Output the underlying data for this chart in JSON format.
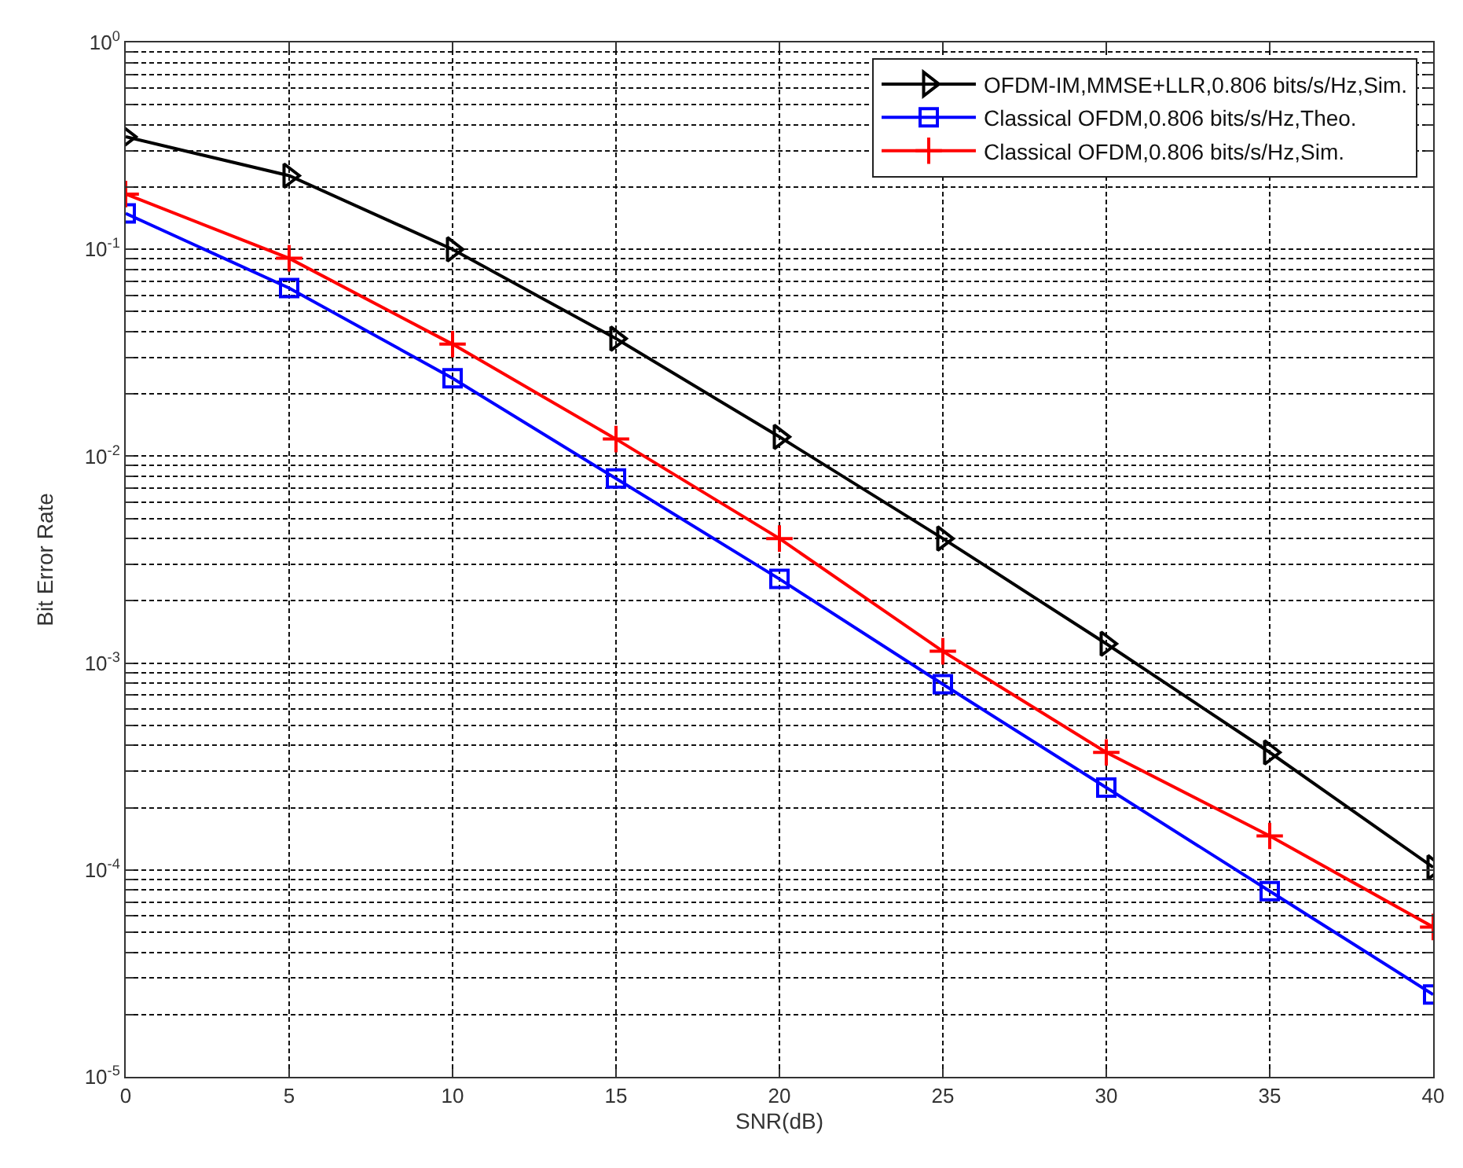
{
  "chart_data": {
    "type": "line",
    "xlabel": "SNR(dB)",
    "ylabel": "Bit Error Rate",
    "x": [
      0,
      5,
      10,
      15,
      20,
      25,
      30,
      35,
      40
    ],
    "xlim": [
      0,
      40
    ],
    "xticks": [
      0,
      5,
      10,
      15,
      20,
      25,
      30,
      35,
      40
    ],
    "log": "y",
    "ylim": [
      1e-05,
      1
    ],
    "yticks": [
      {
        "value": 1e-05,
        "label": "10$^{-5}$"
      },
      {
        "value": 2e-05,
        "label": null
      },
      {
        "value": 3e-05,
        "label": null
      },
      {
        "value": 4e-05,
        "label": null
      },
      {
        "value": 5e-05,
        "label": null
      },
      {
        "value": 6e-05,
        "label": null
      },
      {
        "value": 7e-05,
        "label": null
      },
      {
        "value": 8e-05,
        "label": null
      },
      {
        "value": 9e-05,
        "label": null
      },
      {
        "value": 0.0001,
        "label": "10$^{-4}$"
      },
      {
        "value": 0.0002,
        "label": null
      },
      {
        "value": 0.0003,
        "label": null
      },
      {
        "value": 0.0004,
        "label": null
      },
      {
        "value": 0.0005,
        "label": null
      },
      {
        "value": 0.0006,
        "label": null
      },
      {
        "value": 0.0007,
        "label": null
      },
      {
        "value": 0.0008,
        "label": null
      },
      {
        "value": 0.0009,
        "label": null
      },
      {
        "value": 0.001,
        "label": "10$^{-3}$"
      },
      {
        "value": 0.002,
        "label": null
      },
      {
        "value": 0.003,
        "label": null
      },
      {
        "value": 0.004,
        "label": null
      },
      {
        "value": 0.005,
        "label": null
      },
      {
        "value": 0.006,
        "label": null
      },
      {
        "value": 0.007,
        "label": null
      },
      {
        "value": 0.008,
        "label": null
      },
      {
        "value": 0.009,
        "label": null
      },
      {
        "value": 0.01,
        "label": "10$^{-2}$"
      },
      {
        "value": 0.02,
        "label": null
      },
      {
        "value": 0.03,
        "label": null
      },
      {
        "value": 0.04,
        "label": null
      },
      {
        "value": 0.05,
        "label": null
      },
      {
        "value": 0.06,
        "label": null
      },
      {
        "value": 0.07,
        "label": null
      },
      {
        "value": 0.08,
        "label": null
      },
      {
        "value": 0.09,
        "label": null
      },
      {
        "value": 0.1,
        "label": "10$^{-1}$"
      },
      {
        "value": 0.2,
        "label": null
      },
      {
        "value": 0.3,
        "label": null
      },
      {
        "value": 0.4,
        "label": null
      },
      {
        "value": 0.5,
        "label": null
      },
      {
        "value": 0.6,
        "label": null
      },
      {
        "value": 0.7,
        "label": null
      },
      {
        "value": 0.8,
        "label": null
      },
      {
        "value": 0.9,
        "label": null
      },
      {
        "value": 1,
        "label": "10$^{0}$"
      }
    ],
    "grid": true,
    "legend": "top right",
    "line_style": "solid",
    "series": [
      {
        "name": "OFDM-IM,MMSE+LLR,0.806 bits/s/Hz,Sim.",
        "color": "#000000",
        "marker": "triangle",
        "values": [
          0.35,
          0.227,
          0.1,
          0.037,
          0.0124,
          0.004,
          0.00124,
          0.00037,
          0.000103
        ]
      },
      {
        "name": "Classical OFDM,0.806 bits/s/Hz,Theo.",
        "color": "#0000ff",
        "marker": "square",
        "values": [
          0.149,
          0.065,
          0.0238,
          0.0078,
          0.00255,
          0.00079,
          0.00025,
          7.9e-05,
          2.5e-05
        ]
      },
      {
        "name": "Classical OFDM,0.806 bits/s/Hz,Sim.",
        "color": "#ff0000",
        "marker": "cross",
        "values": [
          0.185,
          0.0905,
          0.0348,
          0.0121,
          0.004,
          0.00114,
          0.00037,
          0.000146,
          5.3e-05
        ]
      }
    ]
  }
}
